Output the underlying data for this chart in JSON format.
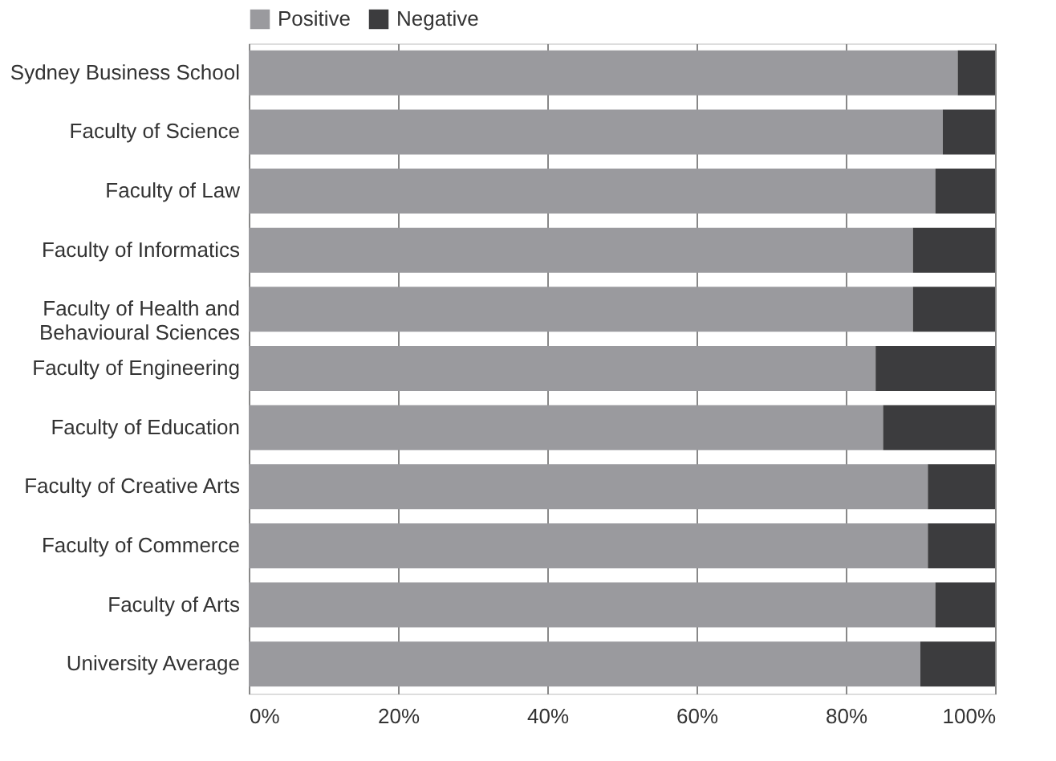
{
  "chart_data": {
    "type": "bar",
    "orientation": "horizontal",
    "stacked": true,
    "categories": [
      "Sydney Business School",
      "Faculty of Science",
      "Faculty of Law",
      "Faculty of Informatics",
      "Faculty of Health and Behavioural Sciences",
      "Faculty of Engineering",
      "Faculty of Education",
      "Faculty of Creative Arts",
      "Faculty of Commerce",
      "Faculty of Arts",
      "University Average"
    ],
    "series": [
      {
        "name": "Positive",
        "color": "#9a9a9e",
        "values": [
          95,
          93,
          92,
          89,
          89,
          84,
          85,
          91,
          91,
          92,
          90
        ]
      },
      {
        "name": "Negative",
        "color": "#3c3c3e",
        "values": [
          5,
          7,
          8,
          11,
          11,
          16,
          15,
          9,
          9,
          8,
          10
        ]
      }
    ],
    "xlim": [
      0,
      100
    ],
    "xticks": [
      {
        "value": 0,
        "label": "0%"
      },
      {
        "value": 20,
        "label": "20%"
      },
      {
        "value": 40,
        "label": "40%"
      },
      {
        "value": 60,
        "label": "60%"
      },
      {
        "value": 80,
        "label": "80%"
      },
      {
        "value": 100,
        "label": "100%"
      }
    ],
    "grid": "x",
    "legend": "top"
  }
}
